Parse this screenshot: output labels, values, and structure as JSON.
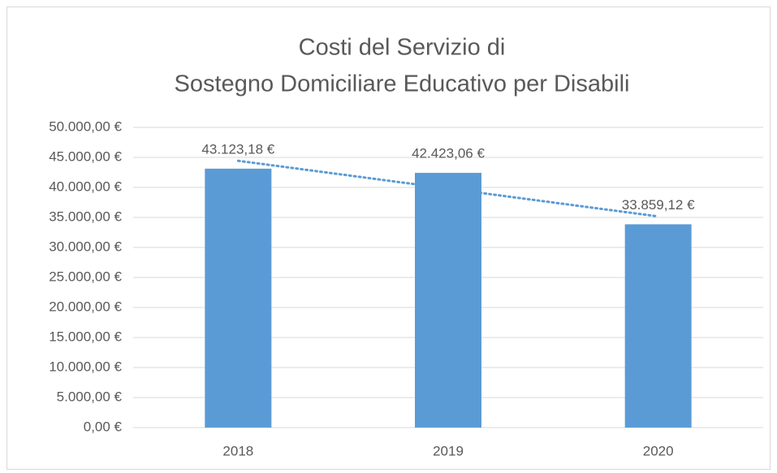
{
  "chart_data": {
    "type": "bar",
    "title": [
      "Costi del Servizio di",
      "Sostegno Domiciliare Educativo per Disabili"
    ],
    "categories": [
      "2018",
      "2019",
      "2020"
    ],
    "values": [
      43123.18,
      42423.06,
      33859.12
    ],
    "value_labels": [
      "43.123,18 €",
      "42.423,06 €",
      "33.859,12 €"
    ],
    "color": "#5b9bd5",
    "trendline": "linear",
    "ylim": [
      0,
      50000
    ],
    "yticks": [
      {
        "value": 0,
        "label": "0,00 €"
      },
      {
        "value": 5000,
        "label": "5.000,00 €"
      },
      {
        "value": 10000,
        "label": "10.000,00 €"
      },
      {
        "value": 15000,
        "label": "15.000,00 €"
      },
      {
        "value": 20000,
        "label": "20.000,00 €"
      },
      {
        "value": 25000,
        "label": "25.000,00 €"
      },
      {
        "value": 30000,
        "label": "30.000,00 €"
      },
      {
        "value": 35000,
        "label": "35.000,00 €"
      },
      {
        "value": 40000,
        "label": "40.000,00 €"
      },
      {
        "value": 45000,
        "label": "45.000,00 €"
      },
      {
        "value": 50000,
        "label": "50.000,00 €"
      }
    ],
    "grid": true
  }
}
